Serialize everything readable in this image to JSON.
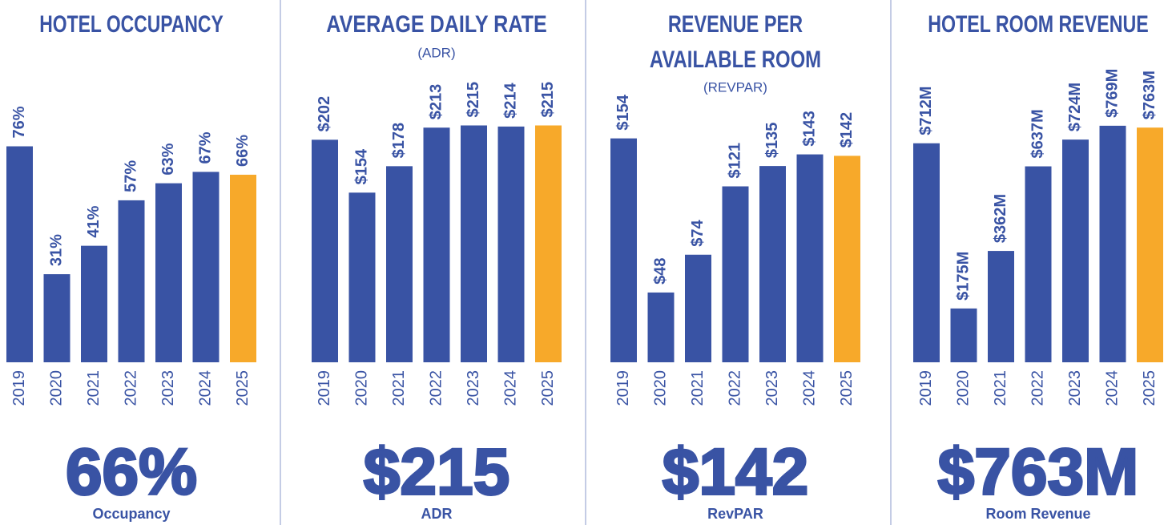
{
  "chart_data": [
    {
      "type": "bar",
      "title": "HOTEL OCCUPANCY",
      "categories": [
        "2019",
        "2020",
        "2021",
        "2022",
        "2023",
        "2024",
        "2025"
      ],
      "values": [
        76,
        31,
        41,
        57,
        63,
        67,
        66
      ],
      "value_labels": [
        "76%",
        "31%",
        "41%",
        "57%",
        "63%",
        "67%",
        "66%"
      ],
      "colors": [
        "#3953a4",
        "#3953a4",
        "#3953a4",
        "#3953a4",
        "#3953a4",
        "#3953a4",
        "#f7a92a"
      ],
      "ylim": [
        0,
        88
      ],
      "highlight": "66%",
      "highlight_caption": "Occupancy"
    },
    {
      "type": "bar",
      "title": "AVERAGE DAILY RATE",
      "subtitle": "(ADR)",
      "categories": [
        "2019",
        "2020",
        "2021",
        "2022",
        "2023",
        "2024",
        "2025"
      ],
      "values": [
        202,
        154,
        178,
        213,
        215,
        214,
        215
      ],
      "value_labels": [
        "$202",
        "$154",
        "$178",
        "$213",
        "$215",
        "$214",
        "$215"
      ],
      "colors": [
        "#3953a4",
        "#3953a4",
        "#3953a4",
        "#3953a4",
        "#3953a4",
        "#3953a4",
        "#f7a92a"
      ],
      "ylim": [
        0,
        227
      ],
      "highlight": "$215",
      "highlight_caption": "ADR"
    },
    {
      "type": "bar",
      "title": [
        "REVENUE PER",
        "AVAILABLE ROOM"
      ],
      "subtitle": "(REVPAR)",
      "categories": [
        "2019",
        "2020",
        "2021",
        "2022",
        "2023",
        "2024",
        "2025"
      ],
      "values": [
        154,
        48,
        74,
        121,
        135,
        143,
        142
      ],
      "value_labels": [
        "$154",
        "$48",
        "$74",
        "$121",
        "$135",
        "$143",
        "$142"
      ],
      "colors": [
        "#3953a4",
        "#3953a4",
        "#3953a4",
        "#3953a4",
        "#3953a4",
        "#3953a4",
        "#f7a92a"
      ],
      "ylim": [
        0,
        172
      ],
      "highlight": "$142",
      "highlight_caption": "RevPAR"
    },
    {
      "type": "bar",
      "title": "HOTEL ROOM REVENUE",
      "categories": [
        "2019",
        "2020",
        "2021",
        "2022",
        "2023",
        "2024",
        "2025"
      ],
      "values": [
        712,
        175,
        362,
        637,
        724,
        769,
        763
      ],
      "value_labels": [
        "$712M",
        "$175M",
        "$362M",
        "$637M",
        "$724M",
        "$769M",
        "$763M"
      ],
      "colors": [
        "#3953a4",
        "#3953a4",
        "#3953a4",
        "#3953a4",
        "#3953a4",
        "#3953a4",
        "#f7a92a"
      ],
      "ylim": [
        0,
        813
      ],
      "highlight": "$763M",
      "highlight_caption": "Room Revenue"
    }
  ]
}
